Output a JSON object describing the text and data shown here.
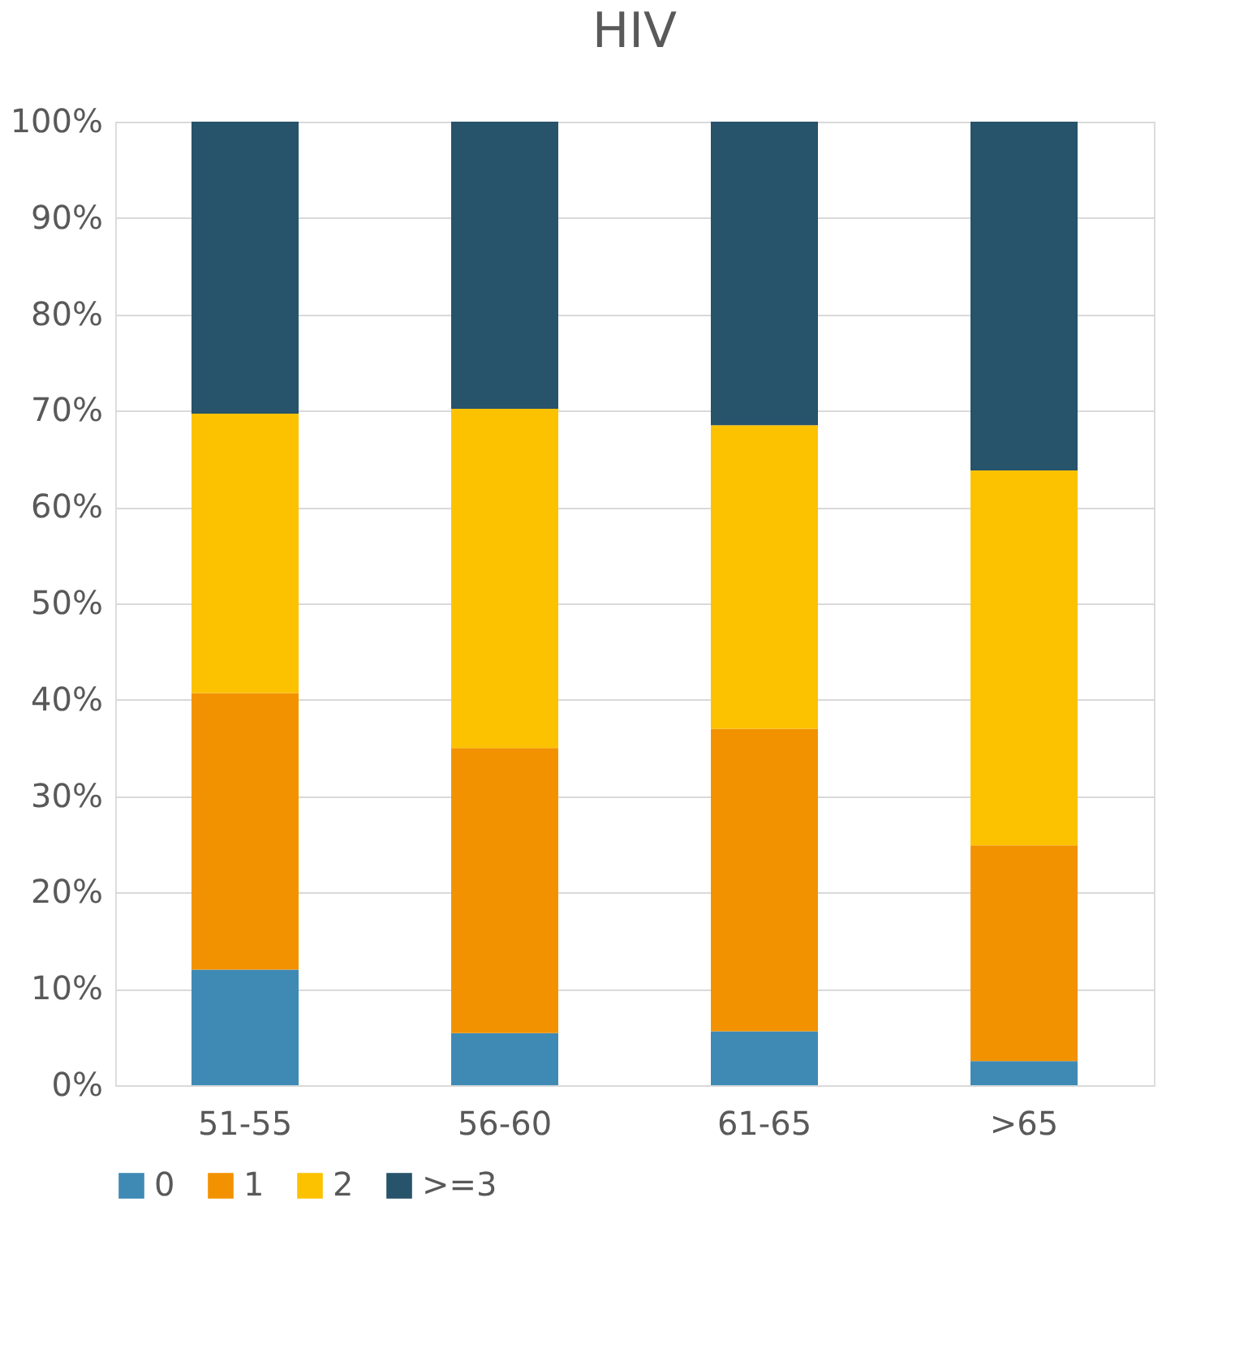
{
  "chart_data": {
    "type": "bar",
    "title": "HIV",
    "categories": [
      "51-55",
      "56-60",
      "61-65",
      ">65"
    ],
    "stacked": true,
    "series": [
      {
        "name": "0",
        "color": "#3f8ab5",
        "values": [
          12,
          5.4,
          5.6,
          2.5
        ]
      },
      {
        "name": "1",
        "color": "#f39200",
        "values": [
          28.7,
          29.6,
          31.4,
          22.4
        ]
      },
      {
        "name": "2",
        "color": "#fcc200",
        "values": [
          29,
          35.2,
          31.5,
          38.9
        ]
      },
      {
        "name": ">=3",
        "color": "#27536b",
        "values": [
          30.3,
          29.8,
          31.5,
          36.2
        ]
      }
    ],
    "ylim": [
      0,
      100
    ],
    "yticks": [
      {
        "value": 0,
        "label": "0%"
      },
      {
        "value": 10,
        "label": "10%"
      },
      {
        "value": 20,
        "label": "20%"
      },
      {
        "value": 30,
        "label": "30%"
      },
      {
        "value": 40,
        "label": "40%"
      },
      {
        "value": 50,
        "label": "50%"
      },
      {
        "value": 60,
        "label": "60%"
      },
      {
        "value": 70,
        "label": "70%"
      },
      {
        "value": 80,
        "label": "80%"
      },
      {
        "value": 90,
        "label": "90%"
      },
      {
        "value": 100,
        "label": "100%"
      }
    ],
    "grid": "y",
    "legend": "bottom"
  }
}
